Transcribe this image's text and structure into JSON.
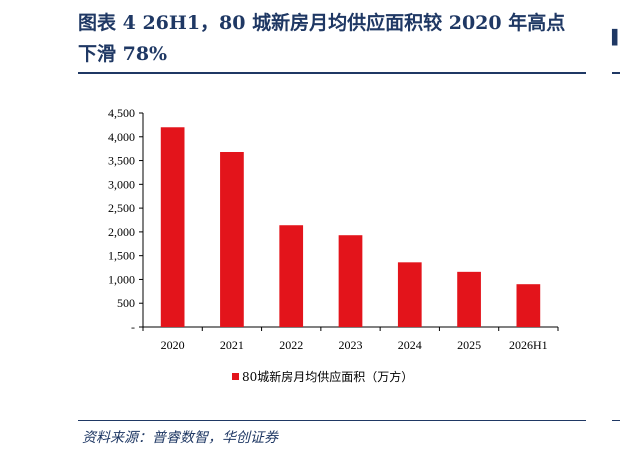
{
  "header": {
    "title_line1": "图表 4   26H1，80 城新房月均供应面积较 2020 年高点",
    "title_line2": "下滑 78%"
  },
  "footer": {
    "source": "资料来源：普睿数智，华创证券"
  },
  "colors": {
    "bar": "#e3141b",
    "title": "#1f3864",
    "axis": "#000000"
  },
  "chart_data": {
    "type": "bar",
    "categories": [
      "2020",
      "2021",
      "2022",
      "2023",
      "2024",
      "2025",
      "2026H1"
    ],
    "series": [
      {
        "name": "80城新房月均供应面积（万方）",
        "values": [
          4200,
          3680,
          2140,
          1930,
          1360,
          1160,
          900
        ]
      }
    ],
    "yticks": [
      "-",
      "500",
      "1,000",
      "1,500",
      "2,000",
      "2,500",
      "3,000",
      "3,500",
      "4,000",
      "4,500"
    ],
    "ylim": [
      0,
      4500
    ],
    "legend": "bottom-center",
    "grid": false
  }
}
